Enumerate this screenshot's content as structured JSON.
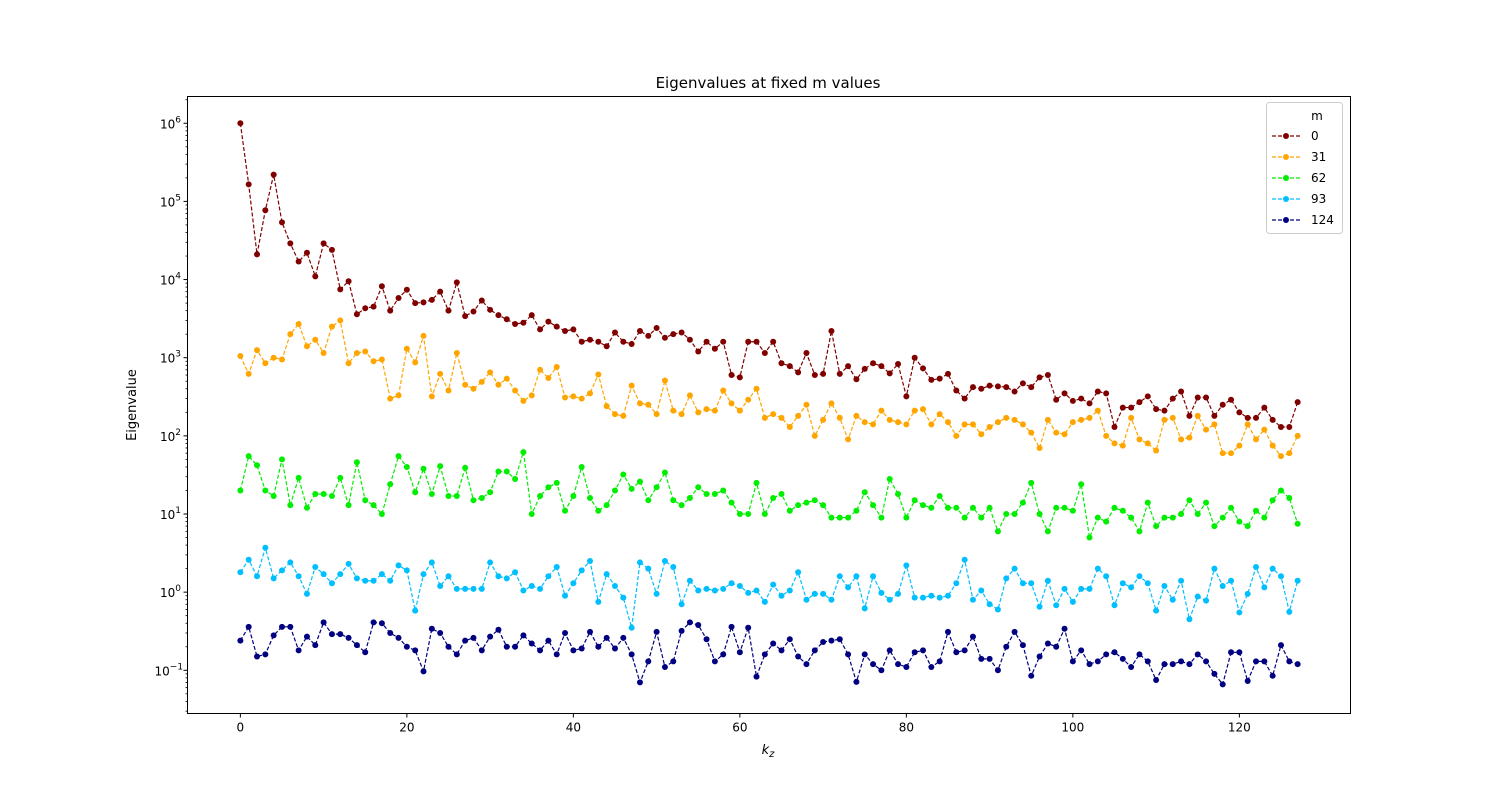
{
  "chart_data": {
    "type": "line",
    "title": "Eigenvalues at fixed m values",
    "xlabel_main": "k",
    "xlabel_sub": "z",
    "ylabel": "Eigenvalue",
    "y_scale": "log",
    "xlim": [
      -6.35,
      133.35
    ],
    "ylim": [
      0.028,
      2200000
    ],
    "x_ticks": [
      0,
      20,
      40,
      60,
      80,
      100,
      120
    ],
    "x_tick_labels": [
      "0",
      "20",
      "40",
      "60",
      "80",
      "100",
      "120"
    ],
    "y_ticks": [
      0.1,
      1,
      10,
      100,
      1000,
      10000,
      100000,
      1000000
    ],
    "y_tick_labels": [
      {
        "base": "10",
        "exp": "−1"
      },
      {
        "base": "10",
        "exp": "0"
      },
      {
        "base": "10",
        "exp": "1"
      },
      {
        "base": "10",
        "exp": "2"
      },
      {
        "base": "10",
        "exp": "3"
      },
      {
        "base": "10",
        "exp": "4"
      },
      {
        "base": "10",
        "exp": "5"
      },
      {
        "base": "10",
        "exp": "6"
      }
    ],
    "grid": false,
    "legend": {
      "title": "m",
      "position": "top-right"
    },
    "x": [
      0,
      1,
      2,
      3,
      4,
      5,
      6,
      7,
      8,
      9,
      10,
      11,
      12,
      13,
      14,
      15,
      16,
      17,
      18,
      19,
      20,
      21,
      22,
      23,
      24,
      25,
      26,
      27,
      28,
      29,
      30,
      31,
      32,
      33,
      34,
      35,
      36,
      37,
      38,
      39,
      40,
      41,
      42,
      43,
      44,
      45,
      46,
      47,
      48,
      49,
      50,
      51,
      52,
      53,
      54,
      55,
      56,
      57,
      58,
      59,
      60,
      61,
      62,
      63,
      64,
      65,
      66,
      67,
      68,
      69,
      70,
      71,
      72,
      73,
      74,
      75,
      76,
      77,
      78,
      79,
      80,
      81,
      82,
      83,
      84,
      85,
      86,
      87,
      88,
      89,
      90,
      91,
      92,
      93,
      94,
      95,
      96,
      97,
      98,
      99,
      100,
      101,
      102,
      103,
      104,
      105,
      106,
      107,
      108,
      109,
      110,
      111,
      112,
      113,
      114,
      115,
      116,
      117,
      118,
      119,
      120,
      121,
      122,
      123,
      124,
      125,
      126,
      127
    ],
    "series": [
      {
        "name": "0",
        "color": "#800000",
        "values": [
          1000000,
          165000,
          21000,
          77000,
          220000,
          54000,
          29000,
          17000,
          22000,
          11000,
          29000,
          24000,
          7500,
          9500,
          3600,
          4300,
          4500,
          8200,
          4000,
          5800,
          7400,
          5000,
          5100,
          5500,
          7000,
          4000,
          9200,
          3400,
          3900,
          5400,
          4100,
          3500,
          3100,
          2700,
          2800,
          3500,
          2300,
          2900,
          2500,
          2200,
          2300,
          1600,
          1700,
          1600,
          1400,
          2100,
          1600,
          1500,
          2200,
          1900,
          2400,
          1800,
          2000,
          2100,
          1700,
          1200,
          1600,
          1300,
          1600,
          600,
          560,
          1600,
          1600,
          1150,
          1600,
          850,
          780,
          650,
          1150,
          600,
          620,
          2200,
          620,
          780,
          530,
          720,
          850,
          780,
          630,
          830,
          320,
          1000,
          730,
          520,
          540,
          620,
          380,
          300,
          420,
          400,
          440,
          430,
          420,
          370,
          470,
          420,
          560,
          600,
          290,
          350,
          280,
          300,
          260,
          370,
          350,
          130,
          230,
          230,
          270,
          320,
          220,
          210,
          300,
          370,
          180,
          310,
          310,
          180,
          250,
          290,
          200,
          170,
          170,
          230,
          160,
          130,
          130,
          270
        ]
      },
      {
        "name": "31",
        "color": "#ffa500",
        "values": [
          1050,
          620,
          1250,
          850,
          1000,
          950,
          2000,
          2700,
          1400,
          1700,
          1150,
          2500,
          3000,
          850,
          1150,
          1200,
          900,
          950,
          300,
          330,
          1300,
          870,
          1900,
          320,
          620,
          380,
          1150,
          450,
          400,
          490,
          650,
          450,
          540,
          380,
          280,
          330,
          700,
          550,
          760,
          310,
          320,
          300,
          350,
          610,
          240,
          190,
          180,
          440,
          260,
          250,
          190,
          510,
          210,
          190,
          330,
          200,
          220,
          210,
          380,
          260,
          210,
          290,
          400,
          170,
          190,
          170,
          130,
          180,
          250,
          100,
          160,
          260,
          170,
          90,
          180,
          150,
          140,
          210,
          160,
          150,
          140,
          210,
          220,
          140,
          190,
          150,
          100,
          140,
          140,
          105,
          130,
          150,
          170,
          160,
          140,
          110,
          70,
          160,
          110,
          105,
          150,
          160,
          170,
          210,
          100,
          80,
          75,
          170,
          90,
          80,
          65,
          160,
          170,
          90,
          95,
          180,
          120,
          140,
          60,
          60,
          75,
          140,
          90,
          120,
          75,
          55,
          60,
          100
        ]
      },
      {
        "name": "62",
        "color": "#00ee00",
        "values": [
          20,
          55,
          42,
          20,
          17,
          50,
          13,
          29,
          12,
          18,
          18,
          17,
          29,
          13,
          46,
          15,
          13,
          10,
          24,
          55,
          40,
          19,
          38,
          18,
          41,
          17,
          17,
          39,
          15,
          16,
          19,
          35,
          35,
          28,
          62,
          10,
          17,
          22,
          25,
          11,
          17,
          40,
          16,
          11,
          13,
          20,
          32,
          21,
          26,
          15,
          22,
          34,
          15,
          13,
          16,
          22,
          18,
          18,
          20,
          14,
          10,
          10,
          25,
          10,
          16,
          18,
          11,
          13,
          14,
          15,
          13,
          9,
          9,
          9,
          11,
          19,
          13,
          9,
          28,
          18,
          9,
          15,
          13,
          12,
          17,
          12,
          12,
          9,
          12,
          9,
          12,
          6,
          10,
          10,
          14,
          25,
          10,
          6,
          12,
          12,
          11,
          24,
          5,
          9,
          8,
          12,
          11,
          9,
          6,
          14,
          7,
          9,
          9,
          10,
          15,
          10,
          14,
          7,
          9,
          12,
          8,
          7,
          11,
          9,
          15,
          20,
          16,
          7.5
        ]
      },
      {
        "name": "93",
        "color": "#00bfff",
        "values": [
          1.8,
          2.6,
          1.6,
          3.7,
          1.5,
          1.9,
          2.4,
          1.6,
          0.95,
          2.1,
          1.7,
          1.3,
          1.7,
          2.3,
          1.5,
          1.4,
          1.4,
          1.7,
          1.4,
          2.2,
          1.9,
          0.58,
          1.7,
          2.4,
          1.2,
          1.6,
          1.1,
          1.1,
          1.1,
          1.1,
          2.4,
          1.6,
          1.5,
          1.8,
          1.05,
          1.2,
          1.1,
          1.6,
          2.1,
          0.9,
          1.3,
          1.9,
          2.5,
          0.75,
          1.7,
          1.2,
          0.85,
          0.35,
          2.4,
          2.0,
          0.95,
          2.5,
          2.1,
          0.7,
          1.4,
          1.05,
          1.1,
          1.05,
          1.1,
          1.3,
          1.2,
          0.98,
          1.05,
          0.75,
          1.25,
          0.9,
          1.05,
          1.8,
          0.8,
          0.95,
          0.95,
          0.8,
          1.6,
          1.15,
          1.6,
          0.62,
          1.6,
          0.98,
          0.8,
          0.95,
          2.2,
          0.85,
          0.85,
          0.9,
          0.85,
          0.9,
          1.3,
          2.6,
          0.8,
          1.05,
          0.7,
          0.6,
          1.5,
          2.0,
          1.3,
          1.3,
          0.65,
          1.4,
          0.68,
          1.1,
          0.75,
          1.1,
          1.1,
          2.0,
          1.6,
          0.68,
          1.3,
          1.15,
          1.6,
          1.3,
          0.58,
          1.2,
          0.8,
          1.4,
          0.45,
          0.88,
          0.78,
          2.0,
          1.2,
          1.4,
          0.55,
          0.95,
          2.1,
          1.15,
          2.0,
          1.6,
          0.56,
          1.4
        ]
      },
      {
        "name": "124",
        "color": "#000080",
        "values": [
          0.24,
          0.36,
          0.15,
          0.16,
          0.28,
          0.36,
          0.36,
          0.18,
          0.27,
          0.21,
          0.41,
          0.29,
          0.29,
          0.26,
          0.21,
          0.17,
          0.41,
          0.4,
          0.3,
          0.26,
          0.2,
          0.18,
          0.097,
          0.34,
          0.3,
          0.2,
          0.16,
          0.24,
          0.26,
          0.18,
          0.27,
          0.33,
          0.2,
          0.2,
          0.28,
          0.22,
          0.18,
          0.24,
          0.16,
          0.3,
          0.18,
          0.19,
          0.31,
          0.2,
          0.26,
          0.19,
          0.26,
          0.16,
          0.07,
          0.13,
          0.31,
          0.11,
          0.13,
          0.32,
          0.41,
          0.38,
          0.25,
          0.13,
          0.16,
          0.36,
          0.17,
          0.35,
          0.083,
          0.16,
          0.22,
          0.18,
          0.25,
          0.15,
          0.12,
          0.18,
          0.23,
          0.24,
          0.25,
          0.16,
          0.071,
          0.16,
          0.12,
          0.1,
          0.18,
          0.12,
          0.11,
          0.17,
          0.18,
          0.11,
          0.13,
          0.31,
          0.17,
          0.18,
          0.27,
          0.14,
          0.14,
          0.1,
          0.2,
          0.31,
          0.21,
          0.085,
          0.15,
          0.22,
          0.2,
          0.34,
          0.13,
          0.18,
          0.12,
          0.13,
          0.16,
          0.17,
          0.14,
          0.11,
          0.16,
          0.13,
          0.075,
          0.12,
          0.12,
          0.13,
          0.12,
          0.16,
          0.13,
          0.09,
          0.066,
          0.17,
          0.17,
          0.073,
          0.13,
          0.13,
          0.085,
          0.21,
          0.13,
          0.12
        ]
      }
    ]
  }
}
